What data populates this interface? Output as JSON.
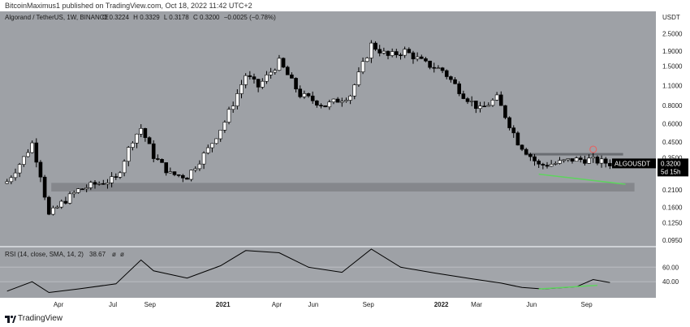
{
  "header": {
    "published": "BitcoinMaximus1 published on TradingView.com, Oct 18, 2022 11:42 UTC+2",
    "symbol_line": "Algorand / TetherUS, 1W, BINANCE",
    "ohlc": {
      "O": "0.3224",
      "H": "0.3329",
      "L": "0.3178",
      "C": "0.3200",
      "change": "−0.0025 (−0.78%)"
    },
    "currency": "USDT"
  },
  "footer": {
    "brand": "TradingView"
  },
  "colors": {
    "background": "#9ea1a6",
    "up_candle": "#ffffff",
    "down_candle": "#000000",
    "support_zone": "#7e8186",
    "rsi_line": "#000000",
    "divergence": "#5fd35f",
    "resistance": "#6a6d72",
    "highlight": "#e06666",
    "label_bg": "#000000"
  },
  "chart_data": [
    {
      "type": "candlestick",
      "title": "Algorand / TetherUS, 1W, BINANCE",
      "y_scale": "log",
      "ylim": [
        0.09,
        3.3
      ],
      "y_ticks": [
        "2.5000",
        "1.9000",
        "1.5000",
        "1.1000",
        "0.8000",
        "0.6000",
        "0.4500",
        "0.3500",
        "0.2100",
        "0.1600",
        "0.1250",
        "0.0950"
      ],
      "x_ticks": [
        {
          "label": "Apr",
          "date": "2020-04-01",
          "bold": false
        },
        {
          "label": "Jul",
          "date": "2020-07-01",
          "bold": false
        },
        {
          "label": "Sep",
          "date": "2020-09-01",
          "bold": false
        },
        {
          "label": "2021",
          "date": "2021-01-01",
          "bold": true
        },
        {
          "label": "Apr",
          "date": "2021-04-01",
          "bold": false
        },
        {
          "label": "Jun",
          "date": "2021-06-01",
          "bold": false
        },
        {
          "label": "Sep",
          "date": "2021-09-01",
          "bold": false
        },
        {
          "label": "2022",
          "date": "2022-01-01",
          "bold": true
        },
        {
          "label": "Mar",
          "date": "2022-03-01",
          "bold": false
        },
        {
          "label": "Jun",
          "date": "2022-06-01",
          "bold": false
        },
        {
          "label": "Sep",
          "date": "2022-09-01",
          "bold": false
        }
      ],
      "series": [
        {
          "name": "Algorand / TetherUS",
          "weekly_closes": [
            {
              "date": "2020-01-06",
              "close": 0.24
            },
            {
              "date": "2020-02-03",
              "close": 0.35
            },
            {
              "date": "2020-02-17",
              "close": 0.44
            },
            {
              "date": "2020-03-02",
              "close": 0.27
            },
            {
              "date": "2020-03-16",
              "close": 0.14
            },
            {
              "date": "2020-04-06",
              "close": 0.17
            },
            {
              "date": "2020-05-04",
              "close": 0.21
            },
            {
              "date": "2020-06-01",
              "close": 0.23
            },
            {
              "date": "2020-07-06",
              "close": 0.25
            },
            {
              "date": "2020-08-03",
              "close": 0.47
            },
            {
              "date": "2020-08-17",
              "close": 0.56
            },
            {
              "date": "2020-09-07",
              "close": 0.36
            },
            {
              "date": "2020-10-05",
              "close": 0.27
            },
            {
              "date": "2020-11-02",
              "close": 0.26
            },
            {
              "date": "2020-12-07",
              "close": 0.4
            },
            {
              "date": "2021-01-04",
              "close": 0.62
            },
            {
              "date": "2021-02-08",
              "close": 1.3
            },
            {
              "date": "2021-03-01",
              "close": 1.08
            },
            {
              "date": "2021-04-05",
              "close": 1.6
            },
            {
              "date": "2021-05-10",
              "close": 0.95
            },
            {
              "date": "2021-06-21",
              "close": 0.8
            },
            {
              "date": "2021-08-02",
              "close": 0.95
            },
            {
              "date": "2021-09-06",
              "close": 2.1
            },
            {
              "date": "2021-10-04",
              "close": 1.75
            },
            {
              "date": "2021-11-01",
              "close": 1.9
            },
            {
              "date": "2021-12-06",
              "close": 1.55
            },
            {
              "date": "2022-01-03",
              "close": 1.4
            },
            {
              "date": "2022-02-07",
              "close": 0.95
            },
            {
              "date": "2022-03-07",
              "close": 0.75
            },
            {
              "date": "2022-04-04",
              "close": 0.9
            },
            {
              "date": "2022-05-09",
              "close": 0.45
            },
            {
              "date": "2022-06-13",
              "close": 0.31
            },
            {
              "date": "2022-07-11",
              "close": 0.32
            },
            {
              "date": "2022-08-08",
              "close": 0.34
            },
            {
              "date": "2022-09-05",
              "close": 0.34
            },
            {
              "date": "2022-10-10",
              "close": 0.32
            }
          ]
        }
      ],
      "support_zone": [
        0.205,
        0.235
      ],
      "resistance_level": 0.37,
      "last_price_label": {
        "symbol": "ALGOUSDT",
        "price": "0.3200",
        "countdown": "5d 15h"
      }
    },
    {
      "type": "line",
      "title": "RSI (14, close, SMA, 14, 2)",
      "legend_values": [
        "38.67",
        "ø",
        "ø"
      ],
      "ylim": [
        20,
        85
      ],
      "y_ticks": [
        "60.00",
        "40.00"
      ],
      "series": [
        {
          "name": "RSI",
          "points": [
            {
              "date": "2020-01-06",
              "value": 27
            },
            {
              "date": "2020-02-17",
              "value": 40
            },
            {
              "date": "2020-03-16",
              "value": 25
            },
            {
              "date": "2020-05-04",
              "value": 30
            },
            {
              "date": "2020-07-06",
              "value": 37
            },
            {
              "date": "2020-08-17",
              "value": 70
            },
            {
              "date": "2020-09-07",
              "value": 55
            },
            {
              "date": "2020-11-02",
              "value": 45
            },
            {
              "date": "2020-12-28",
              "value": 62
            },
            {
              "date": "2021-02-08",
              "value": 83
            },
            {
              "date": "2021-04-05",
              "value": 80
            },
            {
              "date": "2021-05-24",
              "value": 60
            },
            {
              "date": "2021-07-19",
              "value": 53
            },
            {
              "date": "2021-09-06",
              "value": 85
            },
            {
              "date": "2021-10-25",
              "value": 60
            },
            {
              "date": "2021-12-20",
              "value": 52
            },
            {
              "date": "2022-02-21",
              "value": 44
            },
            {
              "date": "2022-04-11",
              "value": 38
            },
            {
              "date": "2022-05-16",
              "value": 32
            },
            {
              "date": "2022-06-20",
              "value": 30
            },
            {
              "date": "2022-08-15",
              "value": 33
            },
            {
              "date": "2022-09-12",
              "value": 43
            },
            {
              "date": "2022-10-10",
              "value": 38.67
            }
          ]
        }
      ],
      "divergence_lines": [
        {
          "from": {
            "date": "2022-06-13",
            "value": 30
          },
          "to": {
            "date": "2022-09-19",
            "value": 35
          }
        }
      ]
    }
  ]
}
